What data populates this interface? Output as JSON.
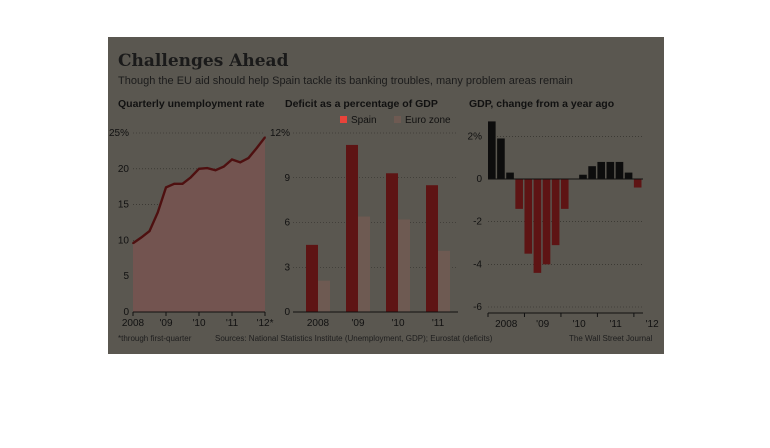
{
  "header": {
    "title": "Challenges Ahead",
    "subtitle": "Though the EU aid should help Spain tackle its banking troubles, many problem areas remain"
  },
  "footer": {
    "note": "*through first-quarter",
    "sources": "Sources: National Statistics Institute (Unemployment, GDP); Eurostat (deficits)",
    "credit": "The Wall Street Journal"
  },
  "colors": {
    "panel_bg": "#5a5750",
    "spain": "#5e1414",
    "euro_zone": "#6e5a52",
    "unemp_line": "#4e1010",
    "unemp_fill": "#735450",
    "gdp_pos": "#0d0d0d",
    "gdp_neg": "#5e1414",
    "legend_swatch": "#e8433a"
  },
  "chart_data": [
    {
      "type": "area",
      "title": "Quarterly unemployment rate",
      "x": [
        2008.0,
        2008.25,
        2008.5,
        2008.75,
        2009.0,
        2009.25,
        2009.5,
        2009.75,
        2010.0,
        2010.25,
        2010.5,
        2010.75,
        2011.0,
        2011.25,
        2011.5,
        2011.75,
        2012.0
      ],
      "values": [
        9.6,
        10.4,
        11.3,
        13.9,
        17.4,
        17.9,
        17.9,
        18.8,
        20.0,
        20.1,
        19.8,
        20.3,
        21.3,
        20.9,
        21.5,
        22.9,
        24.4
      ],
      "ylim": [
        0,
        25
      ],
      "yticks": [
        "0",
        "5",
        "10",
        "15",
        "20",
        "25%"
      ],
      "xticks": [
        "2008",
        "'09",
        "'10",
        "'11",
        "'12*"
      ],
      "grid": true
    },
    {
      "type": "bar",
      "title": "Deficit as a percentage of GDP",
      "categories": [
        "2008",
        "'09",
        "'10",
        "'11"
      ],
      "series": [
        {
          "name": "Spain",
          "values": [
            4.5,
            11.2,
            9.3,
            8.5
          ]
        },
        {
          "name": "Euro zone",
          "values": [
            2.1,
            6.4,
            6.2,
            4.1
          ]
        }
      ],
      "ylim": [
        0,
        12
      ],
      "yticks": [
        "0",
        "3",
        "6",
        "9",
        "12%"
      ],
      "legend": "top",
      "grid": true
    },
    {
      "type": "bar",
      "title": "GDP, change from a year ago",
      "categories": [
        "2008 Q1",
        "2008 Q2",
        "2008 Q3",
        "2008 Q4",
        "2009 Q1",
        "2009 Q2",
        "2009 Q3",
        "2009 Q4",
        "2010 Q1",
        "2010 Q2",
        "2010 Q3",
        "2010 Q4",
        "2011 Q1",
        "2011 Q2",
        "2011 Q3",
        "2011 Q4",
        "2012 Q1"
      ],
      "values": [
        2.7,
        1.9,
        0.3,
        -1.4,
        -3.5,
        -4.4,
        -4.0,
        -3.1,
        -1.4,
        0.0,
        0.2,
        0.6,
        0.8,
        0.8,
        0.8,
        0.3,
        -0.4
      ],
      "ylim": [
        -6,
        3
      ],
      "yticks": [
        "-6",
        "-4",
        "-2",
        "0",
        "2%"
      ],
      "xticks": [
        "2008",
        "'09",
        "'10",
        "'11",
        "'12"
      ],
      "grid": true
    }
  ]
}
